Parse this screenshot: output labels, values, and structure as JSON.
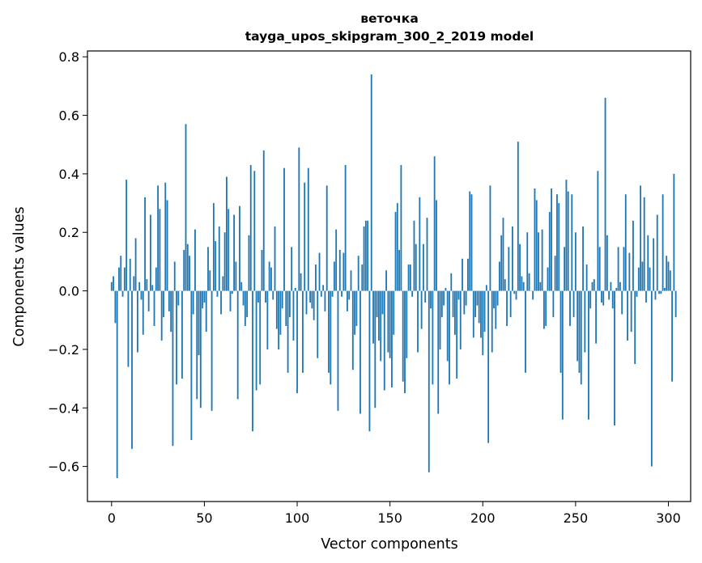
{
  "chart_data": {
    "type": "bar",
    "title": "веточка",
    "subtitle": "tayga_upos_skipgram_300_2_2019 model",
    "xlabel": "Vector components",
    "ylabel": "Components values",
    "xlim": [
      -13,
      312
    ],
    "ylim": [
      -0.72,
      0.82
    ],
    "xticks": [
      0,
      50,
      100,
      150,
      200,
      250,
      300
    ],
    "yticks": [
      -0.6,
      -0.4,
      -0.2,
      0.0,
      0.2,
      0.4,
      0.6,
      0.8
    ],
    "ytick_labels": [
      "−0.6",
      "−0.4",
      "−0.2",
      "0.0",
      "0.2",
      "0.4",
      "0.6",
      "0.8"
    ],
    "grid": false,
    "legend": "none",
    "bar_color": "#1f77b4",
    "x_start": 0,
    "values": [
      0.03,
      0.05,
      -0.11,
      -0.64,
      0.08,
      0.12,
      -0.02,
      0.08,
      0.38,
      -0.26,
      0.11,
      -0.54,
      0.05,
      0.18,
      -0.21,
      0.03,
      -0.03,
      -0.15,
      0.32,
      0.04,
      -0.07,
      0.26,
      0.02,
      -0.12,
      0.08,
      0.36,
      0.28,
      -0.17,
      -0.09,
      0.37,
      0.31,
      -0.07,
      -0.14,
      -0.53,
      0.1,
      -0.32,
      -0.05,
      0.0,
      -0.3,
      0.14,
      0.57,
      0.16,
      0.12,
      -0.51,
      -0.08,
      0.21,
      -0.37,
      -0.22,
      -0.4,
      -0.06,
      -0.04,
      -0.14,
      0.15,
      0.07,
      -0.41,
      0.3,
      0.17,
      -0.02,
      0.22,
      -0.08,
      0.05,
      0.2,
      0.39,
      0.28,
      -0.07,
      -0.01,
      0.26,
      0.1,
      -0.37,
      0.29,
      0.03,
      -0.05,
      -0.12,
      -0.09,
      0.19,
      0.43,
      -0.48,
      0.41,
      -0.34,
      -0.04,
      -0.32,
      0.14,
      0.48,
      -0.04,
      -0.2,
      0.1,
      0.08,
      -0.03,
      0.22,
      -0.13,
      -0.2,
      -0.15,
      -0.06,
      0.42,
      -0.12,
      -0.28,
      -0.09,
      0.15,
      -0.17,
      0.01,
      -0.35,
      0.49,
      0.06,
      -0.28,
      0.37,
      -0.08,
      0.42,
      -0.04,
      -0.06,
      -0.1,
      0.09,
      -0.23,
      0.13,
      -0.02,
      0.02,
      -0.07,
      0.36,
      -0.28,
      -0.32,
      -0.02,
      0.1,
      0.21,
      -0.41,
      0.14,
      -0.02,
      0.13,
      0.43,
      -0.07,
      -0.03,
      0.07,
      -0.27,
      -0.15,
      -0.12,
      0.12,
      -0.42,
      0.09,
      0.22,
      0.24,
      0.24,
      -0.48,
      0.74,
      -0.18,
      -0.4,
      -0.09,
      -0.17,
      -0.24,
      -0.08,
      -0.34,
      0.07,
      -0.21,
      -0.23,
      -0.33,
      -0.15,
      0.27,
      0.3,
      0.14,
      0.43,
      -0.31,
      -0.35,
      -0.23,
      0.09,
      0.09,
      -0.02,
      0.24,
      0.16,
      -0.21,
      0.32,
      -0.13,
      0.16,
      -0.04,
      0.25,
      -0.62,
      -0.06,
      -0.32,
      0.46,
      0.31,
      -0.42,
      -0.2,
      -0.09,
      -0.05,
      0.01,
      -0.24,
      -0.32,
      0.06,
      -0.09,
      -0.15,
      -0.3,
      -0.03,
      -0.2,
      0.11,
      -0.08,
      -0.05,
      0.11,
      0.34,
      0.33,
      -0.16,
      -0.09,
      -0.05,
      -0.11,
      -0.16,
      -0.22,
      -0.14,
      0.02,
      -0.52,
      0.36,
      -0.21,
      -0.06,
      -0.13,
      -0.05,
      0.1,
      0.19,
      0.25,
      0.04,
      -0.12,
      0.15,
      -0.09,
      0.22,
      -0.01,
      -0.03,
      0.51,
      0.16,
      0.05,
      0.03,
      -0.28,
      0.2,
      0.06,
      0.0,
      -0.03,
      0.35,
      0.31,
      0.2,
      0.03,
      0.21,
      -0.13,
      -0.12,
      0.08,
      0.27,
      0.35,
      -0.09,
      0.12,
      0.33,
      0.3,
      -0.28,
      -0.44,
      0.15,
      0.38,
      0.34,
      -0.12,
      0.33,
      -0.09,
      0.2,
      -0.24,
      -0.28,
      -0.32,
      0.22,
      -0.21,
      0.09,
      -0.44,
      -0.06,
      0.03,
      0.04,
      -0.18,
      0.41,
      0.15,
      -0.04,
      -0.05,
      0.66,
      0.19,
      -0.03,
      0.03,
      -0.06,
      -0.46,
      0.01,
      0.15,
      0.03,
      -0.08,
      0.15,
      0.33,
      -0.17,
      0.13,
      -0.14,
      0.24,
      -0.25,
      -0.02,
      0.08,
      0.36,
      0.1,
      0.32,
      -0.04,
      0.19,
      0.08,
      -0.6,
      0.18,
      -0.03,
      0.26,
      -0.01,
      -0.01,
      0.33,
      0.01,
      0.12,
      0.1,
      0.07,
      -0.31,
      0.4,
      -0.09
    ]
  }
}
